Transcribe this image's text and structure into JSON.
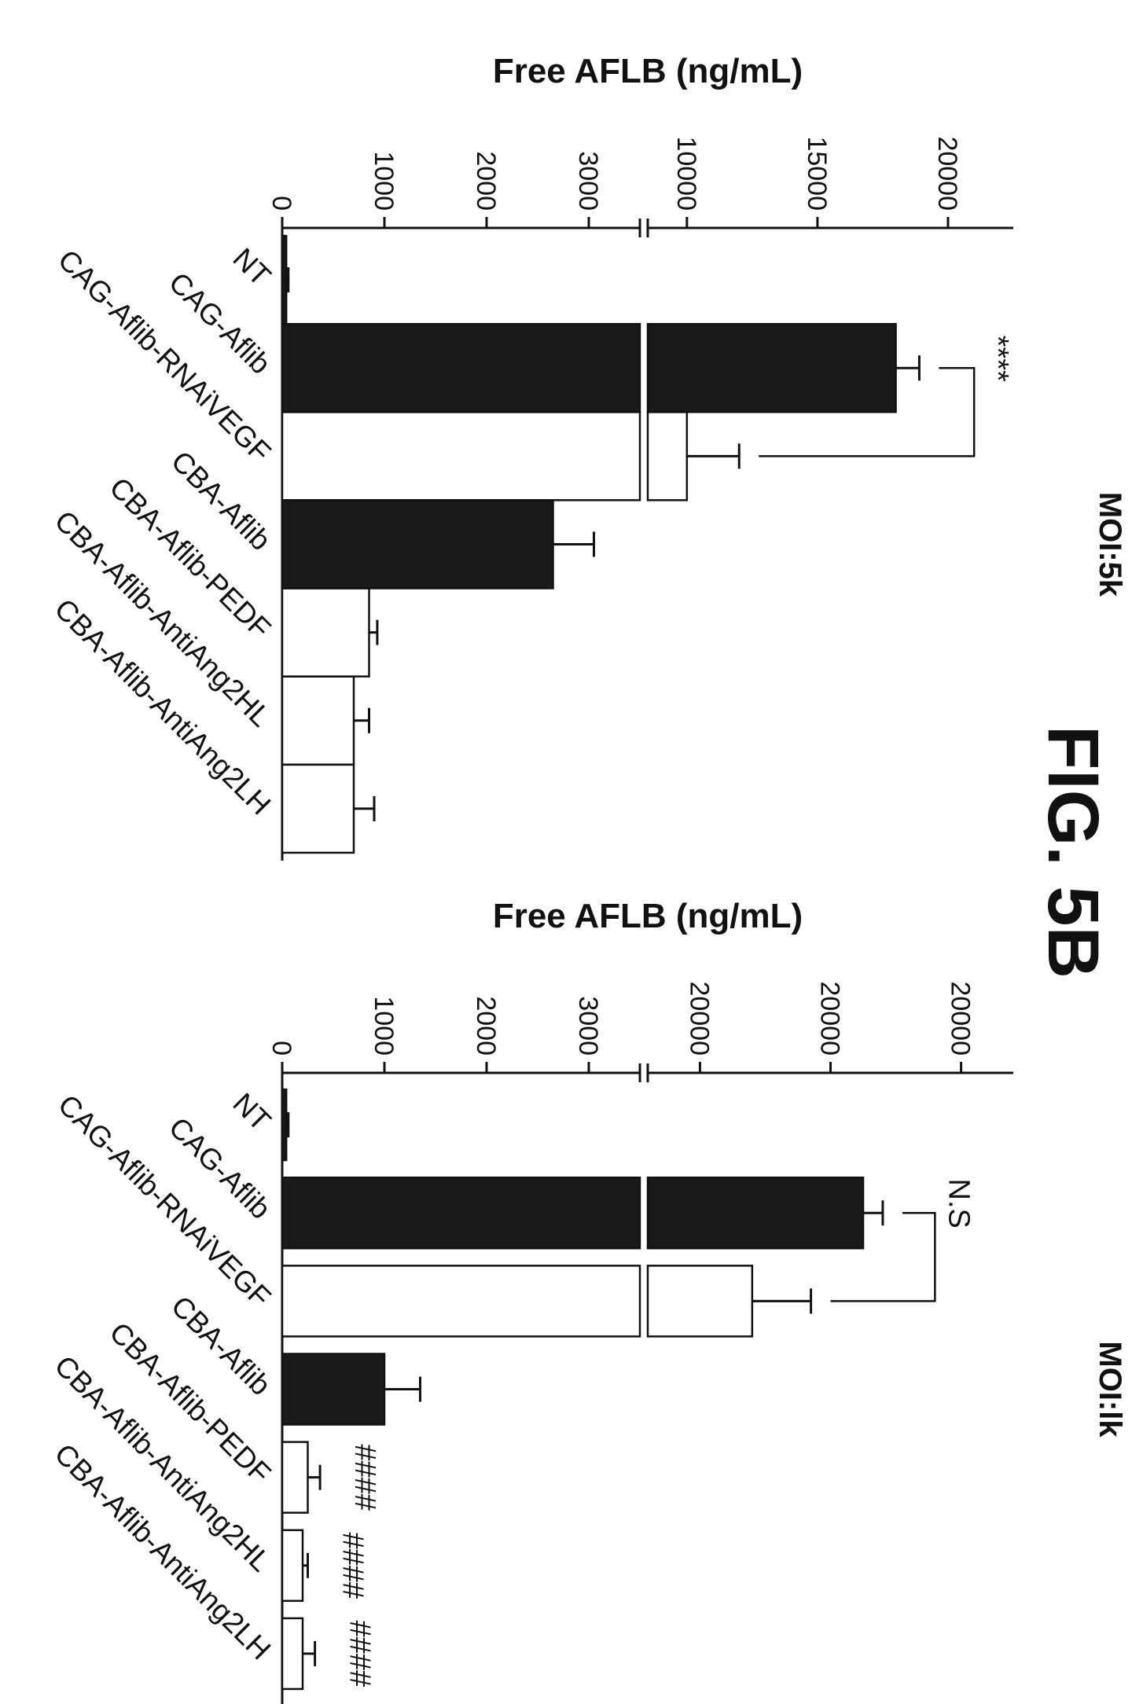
{
  "figure": {
    "title": "FIG. 5B"
  },
  "chart_data": [
    {
      "type": "bar",
      "title": "MOI:5k",
      "ylabel": "Free AFLB (ng/mL)",
      "categories": [
        "NT",
        "CAG-Aflib",
        "CAG-Aflib-RNAiVEGF",
        "CBA-Aflib",
        "CBA-Aflib-PEDF",
        "CBA-Aflib-AntiAng2HL",
        "CBA-Aflib-AntiAng2LH"
      ],
      "values": [
        40,
        18000,
        10000,
        2650,
        850,
        700,
        700
      ],
      "errors": [
        20,
        900,
        2000,
        400,
        80,
        150,
        200
      ],
      "fills": [
        "#1a1a1a",
        "#1a1a1a",
        "#ffffff",
        "#1a1a1a",
        "#ffffff",
        "#ffffff",
        "#ffffff"
      ],
      "y_axis_break": true,
      "lower_range": [
        0,
        3500
      ],
      "upper_range": [
        8500,
        22500
      ],
      "lower_ticks": [
        0,
        1000,
        2000,
        3000
      ],
      "upper_ticks": [
        10000,
        15000,
        20000
      ],
      "tick_labels_lower": [
        "0",
        "1000",
        "2000",
        "3000"
      ],
      "tick_labels_upper": [
        "10000",
        "15000",
        "20000"
      ],
      "annotations": [
        {
          "text": "****",
          "between": [
            1,
            2
          ],
          "y": 21000
        }
      ],
      "bar_marks": []
    },
    {
      "type": "bar",
      "title": "MOI:lk",
      "ylabel": "Free AFLB (ng/mL)",
      "categories": [
        "NT",
        "CAG-Aflib",
        "CAG-Aflib-RNAiVEGF",
        "CBA-Aflib",
        "CBA-Aflib-PEDF",
        "CBA-Aflib-AntiAng2HL",
        "CBA-Aflib-AntiAng2LH"
      ],
      "values": [
        40,
        22500,
        14000,
        1000,
        250,
        200,
        200
      ],
      "errors": [
        20,
        1500,
        4500,
        350,
        120,
        50,
        120
      ],
      "fills": [
        "#1a1a1a",
        "#1a1a1a",
        "#ffffff",
        "#1a1a1a",
        "#ffffff",
        "#ffffff",
        "#ffffff"
      ],
      "y_axis_break": true,
      "lower_range": [
        0,
        3500
      ],
      "upper_range": [
        6000,
        34000
      ],
      "lower_ticks": [
        0,
        1000,
        2000,
        3000
      ],
      "upper_ticks": [
        10000,
        20000,
        30000
      ],
      "tick_labels_lower": [
        "0",
        "1000",
        "2000",
        "3000"
      ],
      "tick_labels_upper": [
        "20000",
        "20000",
        "20000"
      ],
      "annotations": [
        {
          "text": "N.S",
          "between": [
            1,
            2
          ],
          "y": 28000
        }
      ],
      "bar_marks": [
        {
          "bar": 4,
          "text": "####"
        },
        {
          "bar": 5,
          "text": "####"
        },
        {
          "bar": 6,
          "text": "####"
        }
      ]
    }
  ]
}
